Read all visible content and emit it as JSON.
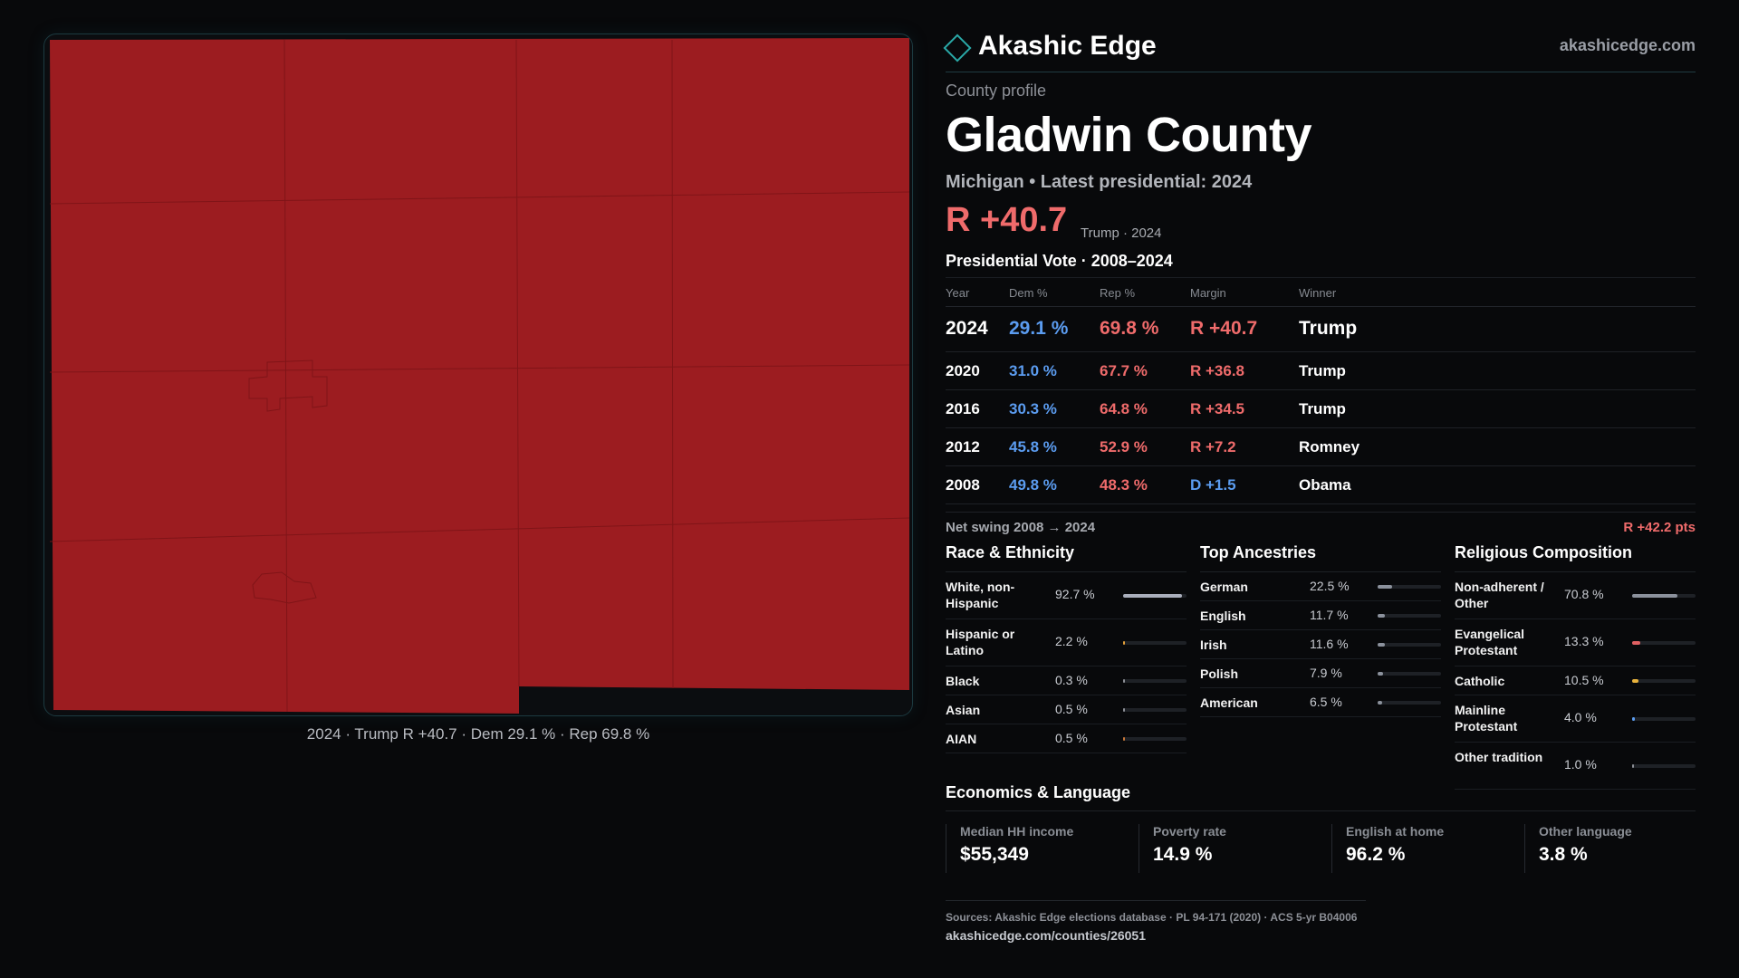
{
  "brand": {
    "name": "Akashic Edge",
    "url": "akashicedge.com"
  },
  "county": {
    "eyebrow": "County profile",
    "name": "Gladwin County",
    "subtitle": "Michigan • Latest presidential: 2024",
    "margin": "R +40.7",
    "margin_note": "Trump · 2024"
  },
  "map": {
    "caption": "2024 · Trump R +40.7 · Dem 29.1 % · Rep 69.8 %",
    "fill_color": "#9c1c20"
  },
  "vote": {
    "title": "Presidential Vote · 2008–2024",
    "headers": {
      "year": "Year",
      "dem": "Dem %",
      "rep": "Rep %",
      "margin": "Margin",
      "winner": "Winner"
    },
    "rows": [
      {
        "year": "2024",
        "dem": "29.1 %",
        "rep": "69.8 %",
        "margin": "R +40.7",
        "party": "R",
        "winner": "Trump"
      },
      {
        "year": "2020",
        "dem": "31.0 %",
        "rep": "67.7 %",
        "margin": "R +36.8",
        "party": "R",
        "winner": "Trump"
      },
      {
        "year": "2016",
        "dem": "30.3 %",
        "rep": "64.8 %",
        "margin": "R +34.5",
        "party": "R",
        "winner": "Trump"
      },
      {
        "year": "2012",
        "dem": "45.8 %",
        "rep": "52.9 %",
        "margin": "R +7.2",
        "party": "R",
        "winner": "Romney"
      },
      {
        "year": "2008",
        "dem": "49.8 %",
        "rep": "48.3 %",
        "margin": "D +1.5",
        "party": "D",
        "winner": "Obama"
      }
    ],
    "swing_label": "Net swing 2008 → 2024",
    "swing_value": "R +42.2 pts"
  },
  "race": {
    "title": "Race & Ethnicity",
    "items": [
      {
        "label": "White, non-Hispanic",
        "value": "92.7 %",
        "share": 0.927,
        "color": "#a9aebb"
      },
      {
        "label": "Hispanic or Latino",
        "value": "2.2 %",
        "share": 0.022,
        "color": "#e3a03a"
      },
      {
        "label": "Black",
        "value": "0.3 %",
        "share": 0.003,
        "color": "#8c8f96"
      },
      {
        "label": "Asian",
        "value": "0.5 %",
        "share": 0.005,
        "color": "#8c8f96"
      },
      {
        "label": "AIAN",
        "value": "0.5 %",
        "share": 0.005,
        "color": "#c9783a"
      }
    ]
  },
  "ancestry": {
    "title": "Top Ancestries",
    "items": [
      {
        "label": "German",
        "value": "22.5 %",
        "share": 0.225,
        "color": "#8b919c"
      },
      {
        "label": "English",
        "value": "11.7 %",
        "share": 0.117,
        "color": "#8b919c"
      },
      {
        "label": "Irish",
        "value": "11.6 %",
        "share": 0.116,
        "color": "#8b919c"
      },
      {
        "label": "Polish",
        "value": "7.9 %",
        "share": 0.079,
        "color": "#8b919c"
      },
      {
        "label": "American",
        "value": "6.5 %",
        "share": 0.065,
        "color": "#8b919c"
      }
    ]
  },
  "religion": {
    "title": "Religious Composition",
    "items": [
      {
        "label": "Non-adherent / Other",
        "value": "70.8 %",
        "share": 0.708,
        "color": "#8b919c"
      },
      {
        "label": "Evangelical Protestant",
        "value": "13.3 %",
        "share": 0.133,
        "color": "#e06062"
      },
      {
        "label": "Catholic",
        "value": "10.5 %",
        "share": 0.105,
        "color": "#e8b23c"
      },
      {
        "label": "Mainline Protestant",
        "value": "4.0 %",
        "share": 0.04,
        "color": "#5b9cf0"
      },
      {
        "label": "Other tradition",
        "value": "1.0 %",
        "share": 0.01,
        "color": "#8c8f96"
      }
    ]
  },
  "economics": {
    "title": "Economics & Language",
    "cards": [
      {
        "label": "Median HH income",
        "value": "$55,349"
      },
      {
        "label": "Poverty rate",
        "value": "14.9 %"
      },
      {
        "label": "English at home",
        "value": "96.2 %"
      },
      {
        "label": "Other language",
        "value": "3.8 %"
      }
    ]
  },
  "sources": {
    "text": "Sources: Akashic Edge elections database · PL 94-171 (2020) · ACS 5-yr B04006",
    "url": "akashicedge.com/counties/26051"
  },
  "colors": {
    "dem": "#5b9cf0",
    "rep": "#ef6b6b",
    "accent": "#2aa9a8"
  }
}
